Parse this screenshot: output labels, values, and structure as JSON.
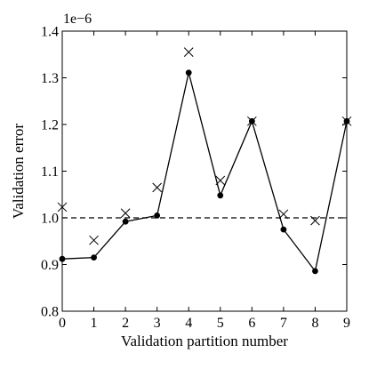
{
  "chart_data": {
    "type": "line",
    "xlabel": "Validation partition number",
    "ylabel": "Validation error",
    "scale_label": "1e−6",
    "x_ticks": [
      "0",
      "1",
      "2",
      "3",
      "4",
      "5",
      "6",
      "7",
      "8",
      "9"
    ],
    "y_ticks": [
      "0.8",
      "0.9",
      "1.0",
      "1.1",
      "1.2",
      "1.3",
      "1.4"
    ],
    "xlim": [
      0,
      9
    ],
    "ylim": [
      0.8,
      1.4
    ],
    "grid": false,
    "series": [
      {
        "marker": "circle",
        "line": "solid",
        "x": [
          0,
          1,
          2,
          3,
          4,
          5,
          6,
          7,
          8,
          9
        ],
        "y": [
          0.912,
          0.915,
          0.992,
          1.005,
          1.311,
          1.048,
          1.207,
          0.975,
          0.886,
          1.207
        ]
      },
      {
        "marker": "x",
        "line": "none",
        "x": [
          0,
          1,
          2,
          3,
          4,
          5,
          6,
          7,
          8,
          9
        ],
        "y": [
          1.023,
          0.952,
          1.01,
          1.065,
          1.355,
          1.08,
          1.207,
          1.008,
          0.994,
          1.207
        ]
      }
    ],
    "reference_line": {
      "y": 1.0,
      "style": "dashed"
    }
  }
}
